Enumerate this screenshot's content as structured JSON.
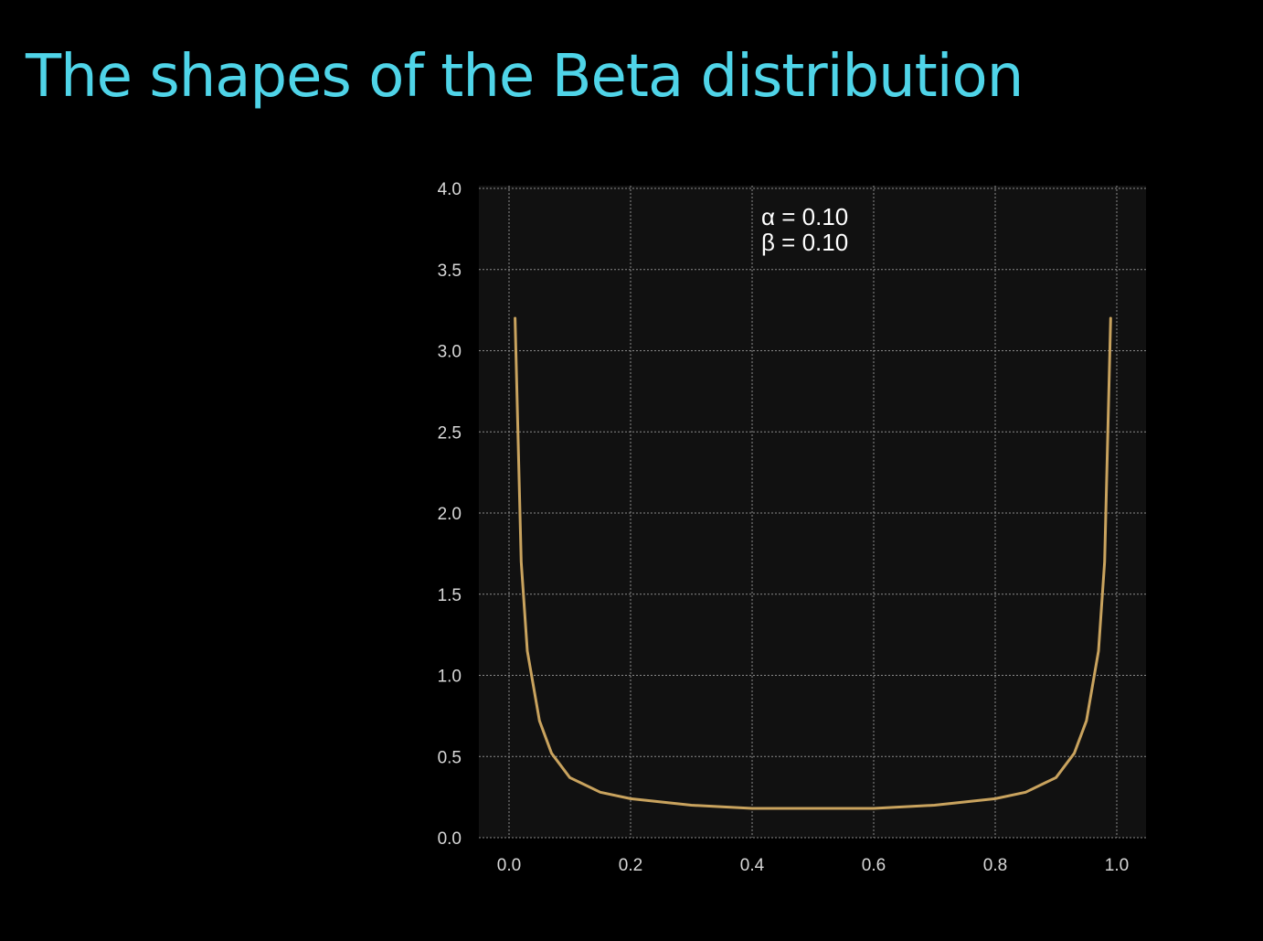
{
  "slide": {
    "title": "The shapes of the Beta distribution"
  },
  "chart_data": {
    "type": "line",
    "title": "",
    "xlabel": "",
    "ylabel": "",
    "xlim": [
      0.0,
      1.0
    ],
    "ylim": [
      0.0,
      4.0
    ],
    "x_ticks": [
      "0.0",
      "0.2",
      "0.4",
      "0.6",
      "0.8",
      "1.0"
    ],
    "y_ticks": [
      "0.0",
      "0.5",
      "1.0",
      "1.5",
      "2.0",
      "2.5",
      "3.0",
      "3.5",
      "4.0"
    ],
    "grid": true,
    "annotations": [
      "α = 0.10",
      "β = 0.10"
    ],
    "series": [
      {
        "x": [
          0.01,
          0.02,
          0.03,
          0.05,
          0.07,
          0.1,
          0.15,
          0.2,
          0.3,
          0.4,
          0.5,
          0.6,
          0.7,
          0.8,
          0.85,
          0.9,
          0.93,
          0.95,
          0.97,
          0.98,
          0.99
        ],
        "y": [
          3.2,
          1.7,
          1.15,
          0.72,
          0.52,
          0.37,
          0.28,
          0.24,
          0.2,
          0.18,
          0.18,
          0.18,
          0.2,
          0.24,
          0.28,
          0.37,
          0.52,
          0.72,
          1.15,
          1.7,
          3.2
        ]
      }
    ],
    "colors": {
      "background": "#000000",
      "plot_background": "#111111",
      "grid": "#8a8a8a",
      "line": "#c9a35e",
      "title": "#4fd4e8"
    }
  }
}
